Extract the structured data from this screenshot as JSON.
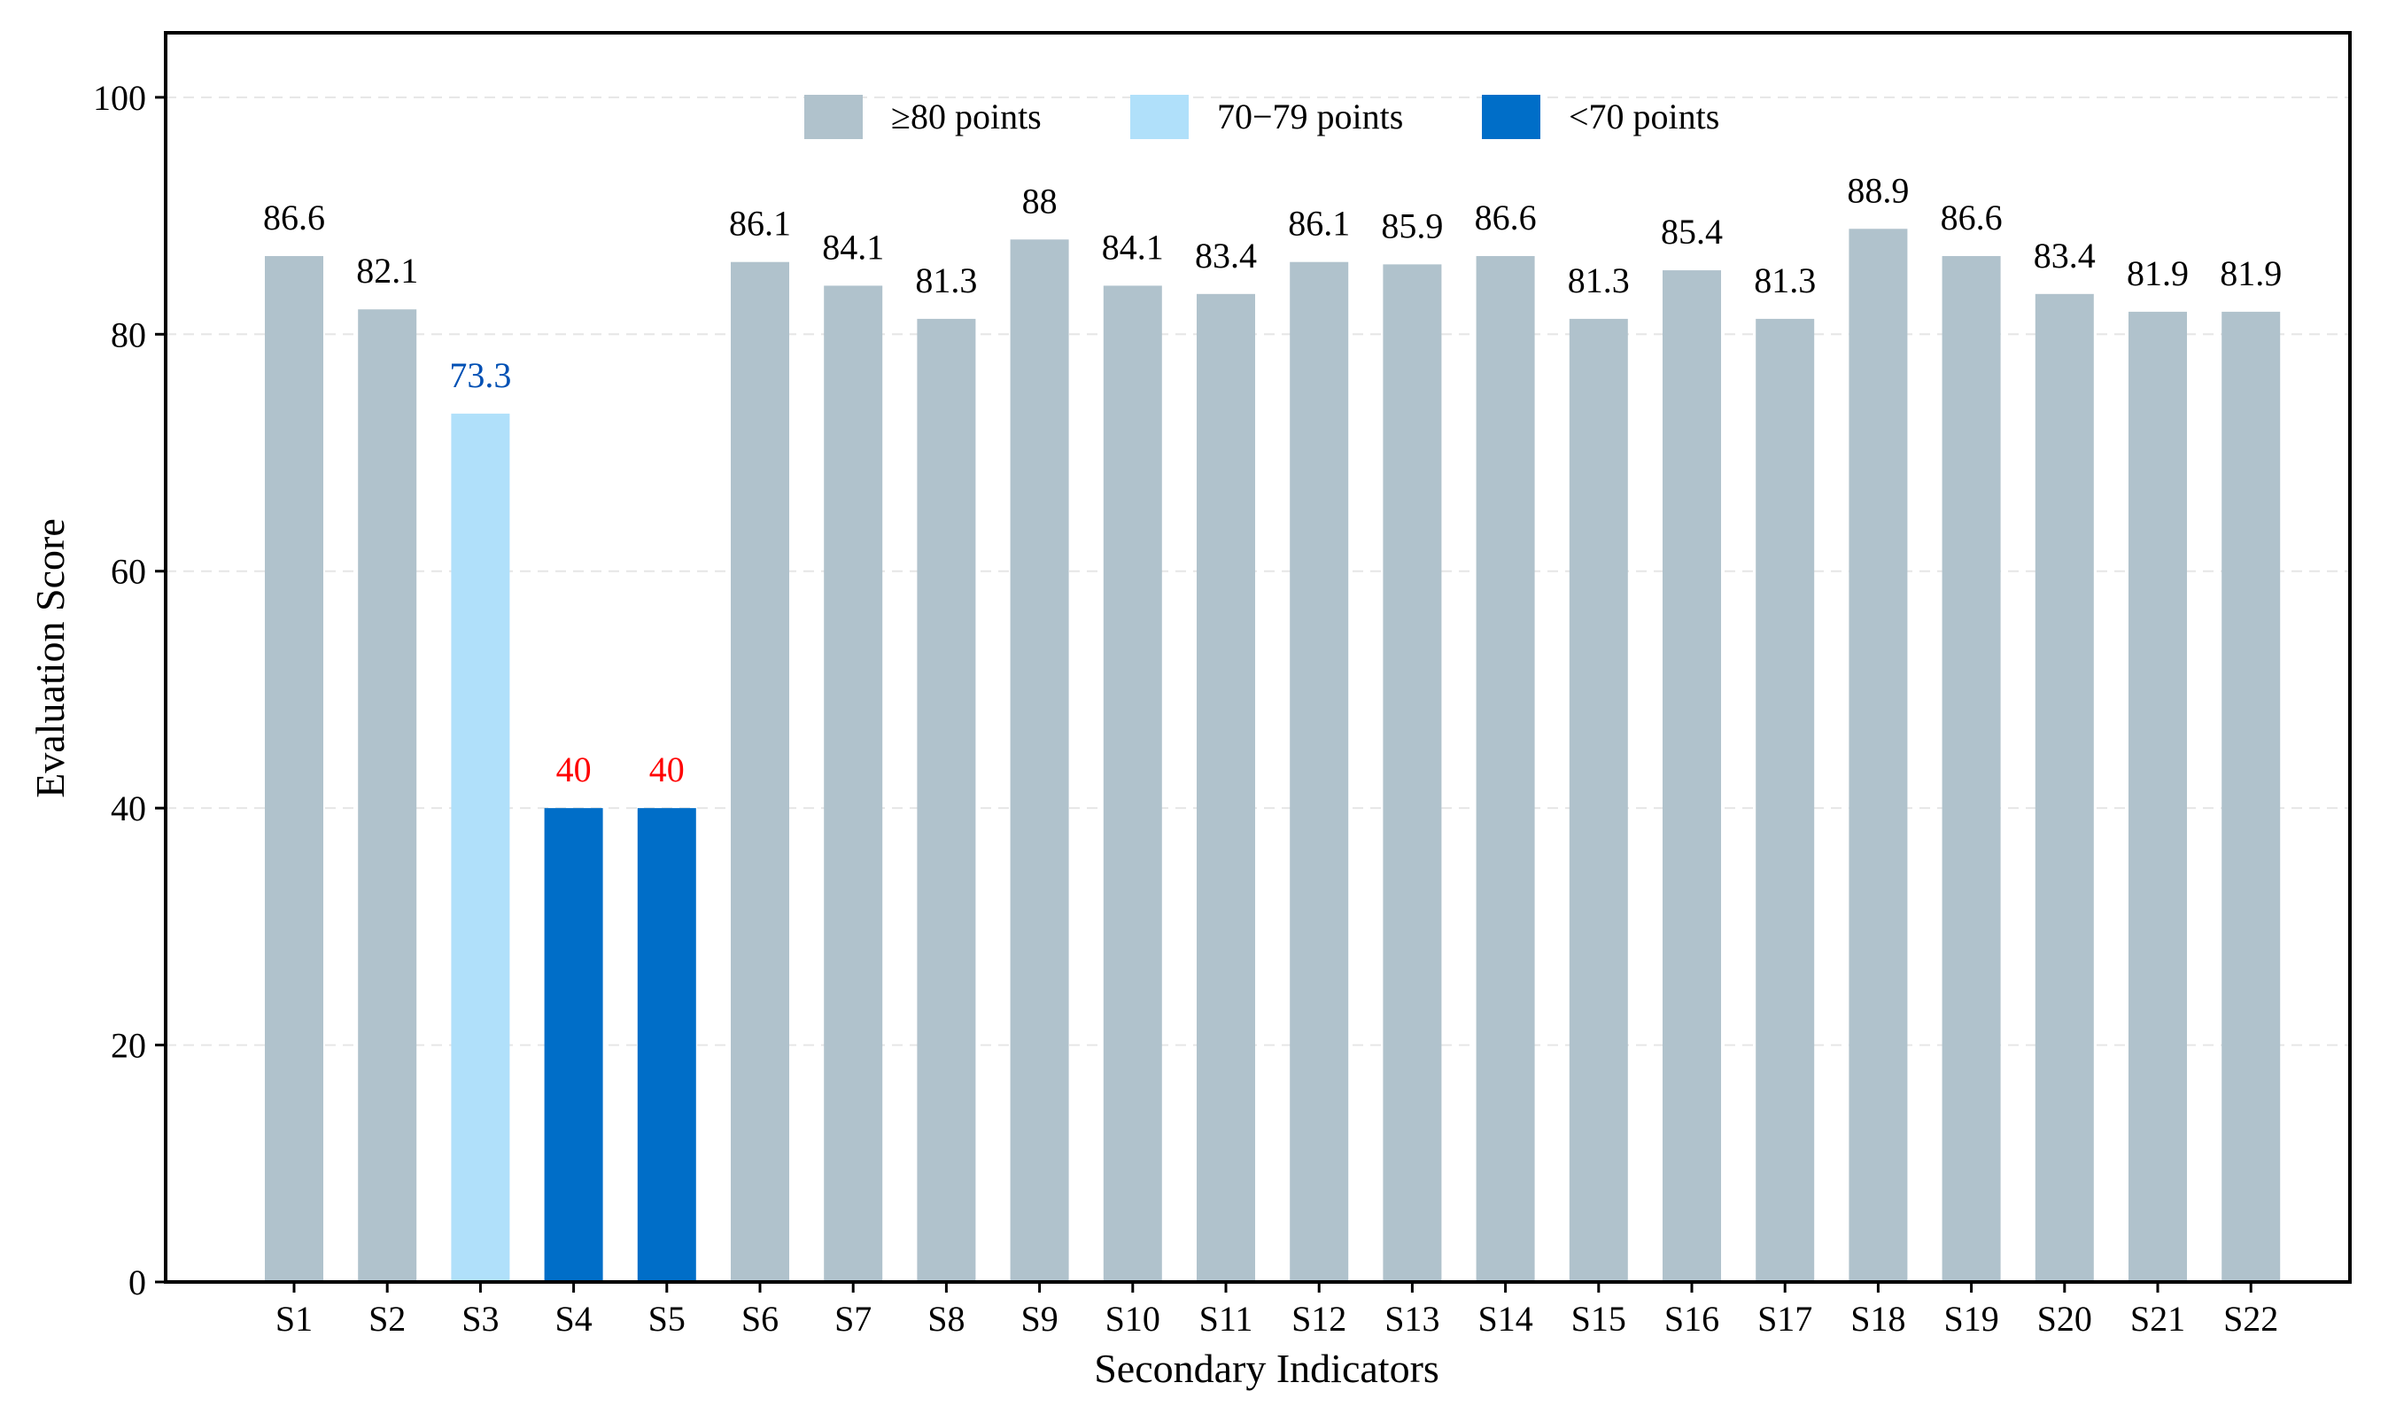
{
  "chart_data": {
    "type": "bar",
    "title": "",
    "xlabel": "Secondary Indicators",
    "ylabel": "Evaluation Score",
    "ylim": [
      0,
      105
    ],
    "yticks": [
      0,
      20,
      40,
      60,
      80,
      100
    ],
    "grid": true,
    "legend_position": "top-center",
    "categories": [
      "S1",
      "S2",
      "S3",
      "S4",
      "S5",
      "S6",
      "S7",
      "S8",
      "S9",
      "S10",
      "S11",
      "S12",
      "S13",
      "S14",
      "S15",
      "S16",
      "S17",
      "S18",
      "S19",
      "S20",
      "S21",
      "S22"
    ],
    "values": [
      86.6,
      82.1,
      73.3,
      40,
      40,
      86.1,
      84.1,
      81.3,
      88,
      84.1,
      83.4,
      86.1,
      85.9,
      86.6,
      81.3,
      85.4,
      81.3,
      88.9,
      86.6,
      83.4,
      81.9,
      81.9
    ],
    "value_labels": [
      "86.6",
      "82.1",
      "73.3",
      "40",
      "40",
      "86.1",
      "84.1",
      "81.3",
      "88",
      "84.1",
      "83.4",
      "86.1",
      "85.9",
      "86.6",
      "81.3",
      "85.4",
      "81.3",
      "88.9",
      "86.6",
      "83.4",
      "81.9",
      "81.9"
    ],
    "legend": [
      {
        "label": "≥80 points",
        "color": "#b0c2cc",
        "min": 80,
        "max": 1000,
        "label_color": "#000000"
      },
      {
        "label": "70−79 points",
        "color": "#b0e0fa",
        "min": 70,
        "max": 80,
        "label_color": "#0050b4"
      },
      {
        "label": "<70 points",
        "color": "#006ec8",
        "min": -1000,
        "max": 70,
        "label_color": "#ff0000"
      }
    ]
  }
}
